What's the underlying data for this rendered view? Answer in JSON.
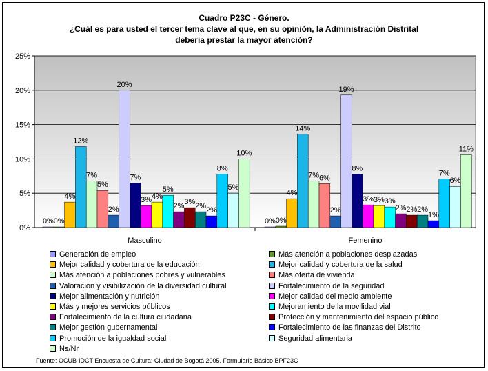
{
  "title": {
    "line1": "Cuadro P23C - Género.",
    "line2": "¿Cuál es para usted el tercer tema clave al que, en su opinión, la Administración Distrital",
    "line3": "debería prestar la mayor atención?"
  },
  "source": "Fuente: OCUB-IDCT Encuesta de Cultura: Ciudad de Bogotá 2005. Formulario Básico BPF23C",
  "chart_data": {
    "type": "bar",
    "categories": [
      "Masculino",
      "Femenino"
    ],
    "ylim": [
      0,
      25
    ],
    "yticks": [
      "0%",
      "5%",
      "10%",
      "15%",
      "20%",
      "25%"
    ],
    "ytick_values": [
      0,
      5,
      10,
      15,
      20,
      25
    ],
    "grid": true,
    "legend_position": "bottom",
    "series": [
      {
        "name": "Generación de empleo",
        "color": "#9999FF",
        "values": [
          0.1,
          0.1
        ],
        "labels": [
          "0%",
          "0%"
        ]
      },
      {
        "name": "Más atención a poblaciones desplazadas",
        "color": "#669933",
        "values": [
          0.1,
          0.2
        ],
        "labels": [
          "0%",
          "0%"
        ]
      },
      {
        "name": "Mejor calidad y cobertura de la educación",
        "color": "#FFC000",
        "values": [
          3.7,
          4.2
        ],
        "labels": [
          "4%",
          "4%"
        ]
      },
      {
        "name": "Mejor calidad y cobertura de la salud",
        "color": "#1BB5E8",
        "values": [
          11.8,
          13.6
        ],
        "labels": [
          "12%",
          "14%"
        ]
      },
      {
        "name": "Más atención a poblaciones pobres y vulnerables",
        "color": "#CCFFCC",
        "values": [
          6.8,
          6.8
        ],
        "labels": [
          "7%",
          "7%"
        ]
      },
      {
        "name": "Más oferta de vivienda",
        "color": "#FF8080",
        "values": [
          5.4,
          6.4
        ],
        "labels": [
          "5%",
          "6%"
        ]
      },
      {
        "name": "Valoración y visibilización de la diversidad cultural",
        "color": "#1F5FAF",
        "values": [
          1.8,
          1.7
        ],
        "labels": [
          "2%",
          "2%"
        ]
      },
      {
        "name": "Fortalecimiento de la seguridad",
        "color": "#CCCCFF",
        "values": [
          20.0,
          19.3
        ],
        "labels": [
          "20%",
          "19%"
        ]
      },
      {
        "name": "Mejor alimentación y nutrición",
        "color": "#000080",
        "values": [
          6.5,
          7.8
        ],
        "labels": [
          "7%",
          "8%"
        ]
      },
      {
        "name": "Mejor calidad del medio ambiente",
        "color": "#FF00FF",
        "values": [
          3.2,
          3.3
        ],
        "labels": [
          "3%",
          "3%"
        ]
      },
      {
        "name": "Más y mejores servicios públicos",
        "color": "#FFFF00",
        "values": [
          3.7,
          3.2
        ],
        "labels": [
          "4%",
          "3%"
        ]
      },
      {
        "name": "Mejoramiento de la movilidad vial",
        "color": "#00FFFF",
        "values": [
          4.7,
          3.0
        ],
        "labels": [
          "5%",
          "3%"
        ]
      },
      {
        "name": "Fortalecimiento de la cultura ciudadana",
        "color": "#800080",
        "values": [
          2.3,
          2.0
        ],
        "labels": [
          "2%",
          "2%"
        ]
      },
      {
        "name": "Protección y mantenimiento del espacio público",
        "color": "#800000",
        "values": [
          2.9,
          1.8
        ],
        "labels": [
          "3%",
          "2%"
        ]
      },
      {
        "name": "Mejor gestión gubernamental",
        "color": "#008080",
        "values": [
          2.3,
          1.8
        ],
        "labels": [
          "2%",
          "2%"
        ]
      },
      {
        "name": "Fortalecimiento de las finanzas del Distrito",
        "color": "#0000FF",
        "values": [
          1.7,
          1.0
        ],
        "labels": [
          "2%",
          "1%"
        ]
      },
      {
        "name": "Promoción de la igualdad social",
        "color": "#00CCFF",
        "values": [
          7.8,
          7.1
        ],
        "labels": [
          "8%",
          "7%"
        ]
      },
      {
        "name": "Seguridad alimentaria",
        "color": "#CCFFFF",
        "values": [
          5.0,
          6.0
        ],
        "labels": [
          "5%",
          "6%"
        ]
      },
      {
        "name": "Ns/Nr",
        "color": "#CCFFCC",
        "values": [
          10.0,
          10.6
        ],
        "labels": [
          "10%",
          "11%"
        ]
      }
    ]
  }
}
